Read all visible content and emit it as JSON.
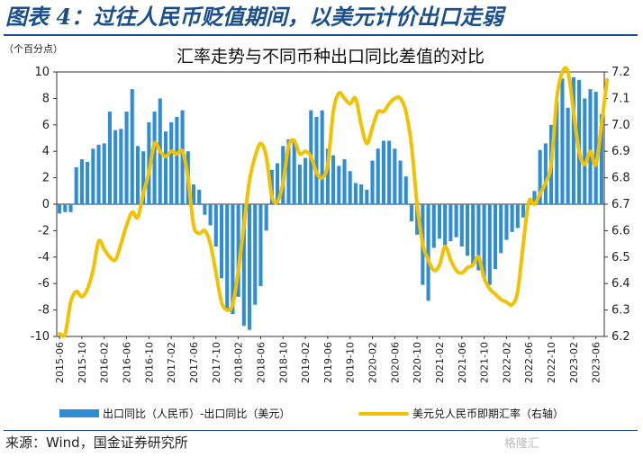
{
  "header": {
    "figure_title": "图表 4：过往人民币贬值期间，以美元计价出口走弱",
    "source": "来源：Wind，国金证券研究所",
    "watermark": "格隆汇"
  },
  "chart_data": {
    "type": "bar+line",
    "title": "汇率走势与不同币种出口同比差值的对比",
    "left_axis": {
      "unit_label": "（个百分点）",
      "min": -10,
      "max": 10,
      "step": 2
    },
    "right_axis": {
      "min": 6.2,
      "max": 7.2,
      "step": 0.1
    },
    "x_tick_labels": [
      "2015-06",
      "2015-10",
      "2016-02",
      "2016-06",
      "2016-10",
      "2017-02",
      "2017-06",
      "2017-10",
      "2018-02",
      "2018-06",
      "2018-10",
      "2019-02",
      "2019-06",
      "2019-10",
      "2020-02",
      "2020-06",
      "2020-10",
      "2021-02",
      "2021-06",
      "2021-10",
      "2022-02",
      "2022-06",
      "2022-10",
      "2023-02",
      "2023-06"
    ],
    "x_start": "2015-06",
    "x_end": "2023-06",
    "series": [
      {
        "name": "出口同比（人民币）-出口同比（美元）",
        "type": "bar",
        "color": "#2f8dd4",
        "axis": "left",
        "values": [
          -0.7,
          -0.6,
          -0.6,
          2.8,
          3.4,
          3.2,
          4.2,
          4.5,
          4.6,
          7.0,
          5.6,
          5.7,
          7.0,
          8.7,
          4.4,
          4.0,
          6.2,
          7.0,
          8.0,
          5.5,
          6.2,
          6.6,
          7.1,
          4.0,
          1.5,
          1.1,
          -0.8,
          -1.6,
          -3.2,
          -5.6,
          -8.1,
          -8.3,
          -7.0,
          -9.2,
          -9.5,
          -7.6,
          -6.2,
          -2.0,
          2.6,
          3.1,
          4.4,
          4.9,
          4.9,
          3.0,
          3.5,
          7.1,
          6.6,
          7.1,
          4.2,
          3.7,
          2.9,
          3.4,
          2.5,
          1.6,
          1.5,
          1.1,
          3.3,
          4.2,
          4.8,
          4.8,
          4.2,
          3.3,
          2.1,
          -1.3,
          -2.3,
          -6.1,
          -7.3,
          -3.3,
          -2.6,
          -3.1,
          -2.8,
          -2.5,
          -3.2,
          -3.9,
          -4.5,
          -5.0,
          -5.6,
          -6.1,
          -4.9,
          -3.7,
          -2.7,
          -2.1,
          -1.8,
          -1.0,
          0.1,
          1.0,
          4.1,
          4.6,
          6.0,
          7.8,
          9.5,
          7.3,
          9.6,
          9.4,
          8.0,
          8.7,
          8.5,
          6.8
        ]
      },
      {
        "name": "美元兑人民币即期汇率（右轴）",
        "type": "line",
        "color": "#f2c200",
        "axis": "right",
        "values": [
          6.21,
          6.21,
          6.33,
          6.37,
          6.35,
          6.38,
          6.45,
          6.56,
          6.53,
          6.5,
          6.49,
          6.55,
          6.62,
          6.67,
          6.65,
          6.74,
          6.82,
          6.93,
          6.9,
          6.88,
          6.9,
          6.89,
          6.9,
          6.8,
          6.62,
          6.59,
          6.6,
          6.55,
          6.44,
          6.33,
          6.3,
          6.32,
          6.45,
          6.62,
          6.79,
          6.88,
          6.93,
          6.88,
          6.73,
          6.71,
          6.78,
          6.92,
          6.94,
          6.89,
          6.9,
          6.88,
          6.82,
          6.8,
          6.85,
          7.05,
          7.12,
          7.1,
          7.08,
          7.1,
          7.0,
          6.93,
          6.99,
          7.05,
          7.05,
          7.08,
          7.1,
          7.1,
          7.05,
          6.92,
          6.7,
          6.55,
          6.49,
          6.45,
          6.47,
          6.54,
          6.49,
          6.45,
          6.44,
          6.46,
          6.47,
          6.5,
          6.42,
          6.38,
          6.36,
          6.34,
          6.33,
          6.32,
          6.37,
          6.55,
          6.71,
          6.7,
          6.74,
          6.78,
          6.85,
          7.1,
          7.2,
          7.2,
          7.05,
          6.9,
          6.85,
          6.9,
          6.85,
          7.0,
          7.17
        ]
      }
    ]
  }
}
